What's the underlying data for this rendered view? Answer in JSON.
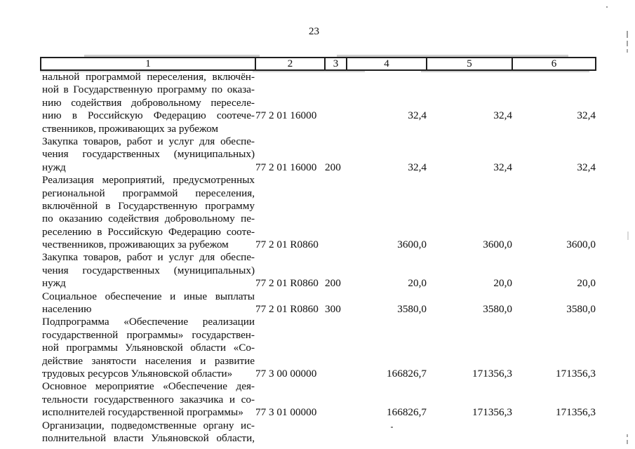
{
  "page": {
    "number": "23"
  },
  "table": {
    "column_headers": [
      "1",
      "2",
      "3",
      "4",
      "5",
      "6"
    ],
    "rows": [
      {
        "lines": [
          "нальной программой переселения, включён-",
          "ной в Государственную программу по оказа-",
          "нию содействия добровольному переселе-",
          "нию в Российскую Федерацию соотече-",
          "ственников, проживающих за рубежом"
        ],
        "code": "77 2 01 16000",
        "expense_type": "",
        "values": [
          "32,4",
          "32,4",
          "32,4"
        ],
        "code_line_offset_from_bottom": 1,
        "continues": false
      },
      {
        "lines": [
          "Закупка товаров, работ и услуг для обеспе-",
          "чения государственных (муниципальных)",
          "нужд"
        ],
        "code": "77 2 01 16000",
        "expense_type": "200",
        "values": [
          "32,4",
          "32,4",
          "32,4"
        ],
        "code_line_offset_from_bottom": 0,
        "continues": false
      },
      {
        "lines": [
          "Реализация мероприятий, предусмотренных",
          "региональной программой переселения,",
          "включённой в Государственную программу",
          "по оказанию содействия добровольному пе-",
          "реселению в Российскую Федерацию сооте-",
          "чественников, проживающих за рубежом"
        ],
        "code": "77 2 01 R0860",
        "expense_type": "",
        "values": [
          "3600,0",
          "3600,0",
          "3600,0"
        ],
        "code_line_offset_from_bottom": 0,
        "continues": false
      },
      {
        "lines": [
          "Закупка товаров, работ и услуг для обеспе-",
          "чения государственных (муниципальных)",
          "нужд"
        ],
        "code": "77 2 01 R0860",
        "expense_type": "200",
        "values": [
          "20,0",
          "20,0",
          "20,0"
        ],
        "code_line_offset_from_bottom": 0,
        "continues": false
      },
      {
        "lines": [
          "Социальное обеспечение и иные выплаты",
          "населению"
        ],
        "code": "77 2 01 R0860",
        "expense_type": "300",
        "values": [
          "3580,0",
          "3580,0",
          "3580,0"
        ],
        "code_line_offset_from_bottom": 0,
        "continues": false
      },
      {
        "lines": [
          "Подпрограмма «Обеспечение реализации",
          "государственной программы» государствен-",
          "ной программы Ульяновской области «Со-",
          "действие занятости населения и развитие",
          "трудовых ресурсов Ульяновской области»"
        ],
        "code": "77 3 00 00000",
        "expense_type": "",
        "values": [
          "166826,7",
          "171356,3",
          "171356,3"
        ],
        "code_line_offset_from_bottom": 0,
        "continues": false
      },
      {
        "lines": [
          "Основное мероприятие «Обеспечение дея-",
          "тельности государственного заказчика и со-",
          "исполнителей государственной программы»"
        ],
        "code": "77 3 01 00000",
        "expense_type": "",
        "values": [
          "166826,7",
          "171356,3",
          "171356,3"
        ],
        "code_line_offset_from_bottom": 0,
        "continues": false
      },
      {
        "lines": [
          "Организации, подведомственные органу ис-",
          "полнительной власти Ульяновской области,"
        ],
        "code": "",
        "expense_type": "",
        "values": [],
        "code_line_offset_from_bottom": 0,
        "continues": true
      }
    ]
  }
}
